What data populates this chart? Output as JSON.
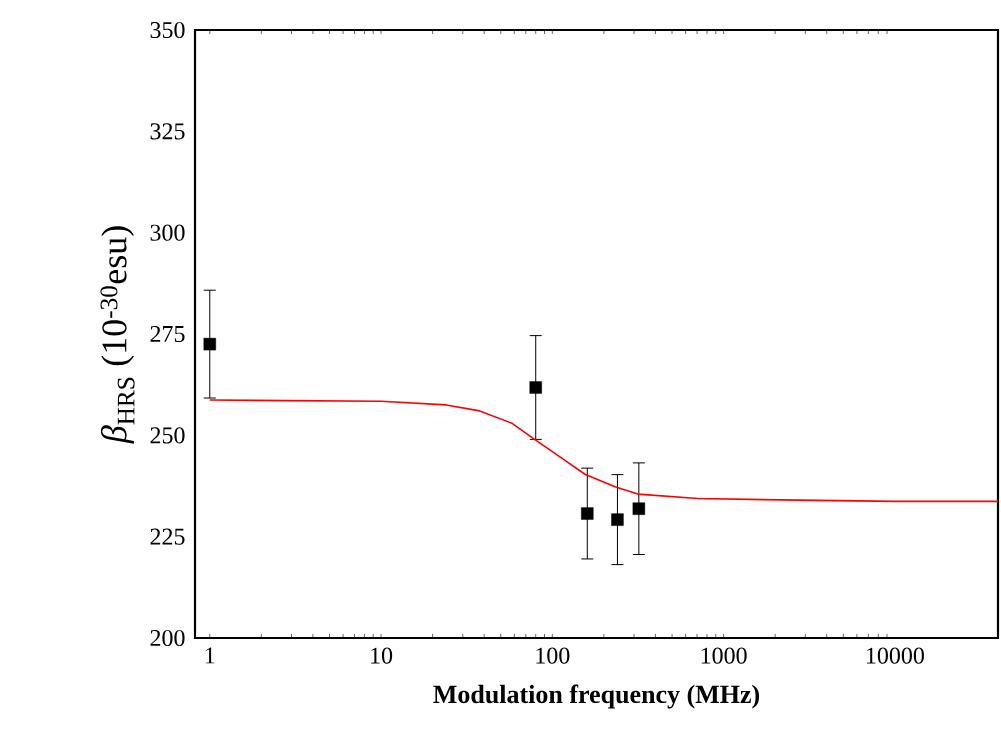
{
  "chart_data": {
    "type": "scatter",
    "xlabel": "**Modulation frequency (MHz)**",
    "ylabel": "*β*$_{HRS}$ (10$^{-30}$esu)",
    "log": "x",
    "xlim": [
      0.82,
      40000
    ],
    "ylim": [
      200,
      350
    ],
    "xticks": [
      1,
      10,
      100,
      1000,
      10000
    ],
    "yticks": [
      200,
      225,
      250,
      275,
      300,
      325,
      350
    ],
    "grid": false,
    "series": [
      {
        "marker": "square",
        "color": "#000000",
        "x": [
          1,
          80,
          160,
          240,
          320
        ],
        "values": [
          272.5,
          261.8,
          230.7,
          229.2,
          231.9
        ],
        "errors": [
          13.3,
          12.8,
          11.2,
          11.1,
          11.3
        ]
      },
      {
        "type": "line",
        "marker": "none",
        "color": "#ff0000",
        "x": [
          1,
          10,
          24,
          37,
          58,
          78,
          114,
          155,
          232,
          316,
          708,
          2750,
          10000,
          40000
        ],
        "values": [
          258.7,
          258.4,
          257.5,
          256.1,
          253.0,
          249.1,
          244.3,
          240.4,
          237.3,
          235.5,
          234.4,
          234.0,
          233.7,
          233.7
        ]
      }
    ]
  }
}
